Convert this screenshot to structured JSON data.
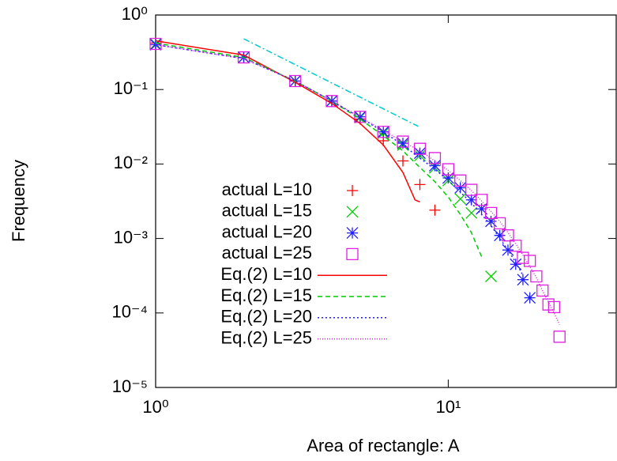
{
  "chart_data": {
    "type": "line",
    "log_x": true,
    "log_y": true,
    "xlabel": "Area of rectangle: A",
    "ylabel": "Frequency",
    "xlim": [
      1,
      37.5
    ],
    "ylim": [
      1e-05,
      1
    ],
    "xticks": [
      {
        "value": 1,
        "label": "10⁰"
      },
      {
        "value": 10,
        "label": "10¹"
      }
    ],
    "yticks": [
      {
        "value": 1e-05,
        "label": "10⁻⁵"
      },
      {
        "value": 0.0001,
        "label": "10⁻⁴"
      },
      {
        "value": 0.001,
        "label": "10⁻³"
      },
      {
        "value": 0.01,
        "label": "10⁻²"
      },
      {
        "value": 0.1,
        "label": "10⁻¹"
      },
      {
        "value": 1,
        "label": "10⁰"
      }
    ],
    "legend": "upper-left-lower",
    "series": [
      {
        "name": "actual L=10",
        "color": "#ff0000",
        "mode": "markers",
        "marker": "plus",
        "x": [
          1,
          2,
          3,
          4,
          5,
          6,
          7,
          8,
          9
        ],
        "values": [
          0.42,
          0.27,
          0.13,
          0.07,
          0.04,
          0.0205,
          0.011,
          0.0053,
          0.0024
        ]
      },
      {
        "name": "actual L=15",
        "color": "#00cc00",
        "mode": "markers",
        "marker": "cross",
        "x": [
          1,
          2,
          3,
          4,
          5,
          6,
          7,
          8,
          9,
          10,
          11,
          12,
          14
        ],
        "values": [
          0.41,
          0.27,
          0.13,
          0.07,
          0.042,
          0.026,
          0.018,
          0.013,
          0.0089,
          0.006,
          0.0034,
          0.0022,
          0.00031
        ]
      },
      {
        "name": "actual L=20",
        "color": "#2020ff",
        "mode": "markers",
        "marker": "star",
        "x": [
          1,
          2,
          3,
          4,
          5,
          6,
          7,
          8,
          9,
          10,
          11,
          12,
          13,
          14,
          15,
          16,
          17,
          18,
          19
        ],
        "values": [
          0.4,
          0.27,
          0.13,
          0.07,
          0.043,
          0.027,
          0.019,
          0.014,
          0.0095,
          0.0065,
          0.0048,
          0.0033,
          0.0025,
          0.0017,
          0.0011,
          0.0007,
          0.00045,
          0.00028,
          0.00016
        ]
      },
      {
        "name": "actual L=25",
        "color": "#e020e0",
        "mode": "markers",
        "marker": "square",
        "x": [
          1,
          2,
          3,
          4,
          5,
          6,
          7,
          8,
          9,
          10,
          11,
          12,
          13,
          14,
          15,
          16,
          17,
          18,
          19,
          20,
          21,
          22,
          23,
          24
        ],
        "values": [
          0.41,
          0.27,
          0.13,
          0.07,
          0.043,
          0.027,
          0.02,
          0.016,
          0.012,
          0.0085,
          0.006,
          0.0045,
          0.0033,
          0.0022,
          0.0016,
          0.0011,
          0.0008,
          0.00055,
          0.0005,
          0.00031,
          0.0002,
          0.00013,
          0.00012,
          4.8e-05
        ]
      },
      {
        "name": "Eq.(2) L=10",
        "color": "#ff0000",
        "mode": "line",
        "dash": "",
        "x": [
          1,
          2,
          3,
          4,
          5,
          6,
          7,
          7.7,
          8
        ],
        "values": [
          0.45,
          0.29,
          0.125,
          0.065,
          0.035,
          0.018,
          0.0077,
          0.0033,
          0.0031
        ]
      },
      {
        "name": "Eq.(2) L=15",
        "color": "#00cc00",
        "mode": "line",
        "dash": "6 4",
        "x": [
          1,
          2,
          3,
          4,
          5,
          6,
          7,
          8,
          9,
          10,
          11,
          12,
          13
        ],
        "values": [
          0.42,
          0.27,
          0.13,
          0.07,
          0.04,
          0.024,
          0.015,
          0.009,
          0.0058,
          0.0036,
          0.0021,
          0.0012,
          0.00057
        ]
      },
      {
        "name": "Eq.(2) L=20",
        "color": "#2020ff",
        "mode": "line",
        "dash": "2 3",
        "x": [
          1,
          2,
          3,
          4,
          5,
          6,
          7,
          8,
          9,
          10,
          11,
          12,
          13,
          14,
          15,
          16,
          17,
          18
        ],
        "values": [
          0.4,
          0.26,
          0.13,
          0.07,
          0.042,
          0.027,
          0.018,
          0.012,
          0.0085,
          0.006,
          0.0042,
          0.003,
          0.0021,
          0.0015,
          0.001,
          0.0007,
          0.00048,
          0.00032
        ]
      },
      {
        "name": "Eq.(2) L=25",
        "color": "#e020e0",
        "mode": "line",
        "dash": "1 2",
        "x": [
          1,
          2,
          3,
          4,
          5,
          6,
          7,
          8,
          9,
          10,
          11,
          12,
          13,
          14,
          15,
          16,
          17,
          18,
          19,
          20,
          21,
          22,
          23,
          24
        ],
        "values": [
          0.4,
          0.26,
          0.13,
          0.07,
          0.043,
          0.028,
          0.02,
          0.015,
          0.011,
          0.0082,
          0.006,
          0.0044,
          0.0032,
          0.0023,
          0.0017,
          0.0012,
          0.00085,
          0.0006,
          0.00042,
          0.0003,
          0.0002,
          0.00014,
          0.0001,
          7e-05
        ]
      },
      {
        "color": "#00cccc",
        "mode": "line",
        "dash": "8 3 2 3",
        "x": [
          2,
          7.9
        ],
        "values": [
          0.48,
          0.032
        ]
      }
    ]
  }
}
